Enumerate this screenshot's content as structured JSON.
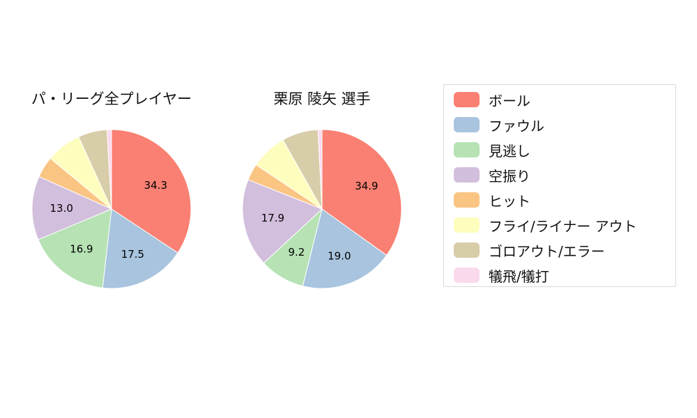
{
  "chart_data": [
    {
      "type": "pie",
      "title": "パ・リーグ全プレイヤー",
      "labels": [
        "ボール",
        "ファウル",
        "見逃し",
        "空振り",
        "ヒット",
        "フライ/ライナー アウト",
        "ゴロアウト/エラー",
        "犠飛/犠打"
      ],
      "slice_names": [
        "ball",
        "foul",
        "called-strike",
        "swinging-strike",
        "hit",
        "fly-liner-out",
        "groundout-error",
        "sacrifice"
      ],
      "values": [
        34.3,
        17.5,
        16.9,
        13.0,
        4.3,
        7.2,
        5.9,
        0.9
      ],
      "data_labels": [
        "34.3",
        "17.5",
        "16.9",
        "13.0",
        "",
        "",
        "",
        ""
      ],
      "colors": [
        "#f98072",
        "#a8c4de",
        "#b6e2b4",
        "#d2bedd",
        "#fac483",
        "#fdfdbe",
        "#d8cda9",
        "#fbd9ed"
      ],
      "start_angle_deg": 0,
      "direction": "clockwise"
    },
    {
      "type": "pie",
      "title": "栗原 陵矢  選手",
      "labels": [
        "ボール",
        "ファウル",
        "見逃し",
        "空振り",
        "ヒット",
        "フライ/ライナー アウト",
        "ゴロアウト/エラー",
        "犠飛/犠打"
      ],
      "slice_names": [
        "ball",
        "foul",
        "called-strike",
        "swinging-strike",
        "hit",
        "fly-liner-out",
        "groundout-error",
        "sacrifice"
      ],
      "values": [
        34.9,
        19.0,
        9.2,
        17.9,
        3.4,
        7.4,
        7.4,
        0.8
      ],
      "data_labels": [
        "34.9",
        "19.0",
        "9.2",
        "17.9",
        "",
        "",
        "",
        ""
      ],
      "colors": [
        "#f98072",
        "#a8c4de",
        "#b6e2b4",
        "#d2bedd",
        "#fac483",
        "#fdfdbe",
        "#d8cda9",
        "#fbd9ed"
      ],
      "start_angle_deg": 0,
      "direction": "clockwise"
    }
  ],
  "legend": {
    "position": "right",
    "items": [
      {
        "label": "ボール",
        "color": "#f98072"
      },
      {
        "label": "ファウル",
        "color": "#a8c4de"
      },
      {
        "label": "見逃し",
        "color": "#b6e2b4"
      },
      {
        "label": "空振り",
        "color": "#d2bedd"
      },
      {
        "label": "ヒット",
        "color": "#fac483"
      },
      {
        "label": "フライ/ライナー アウト",
        "color": "#fdfdbe"
      },
      {
        "label": "ゴロアウト/エラー",
        "color": "#d8cda9"
      },
      {
        "label": "犠飛/犠打",
        "color": "#fbd9ed"
      }
    ]
  },
  "style": {
    "background": "#ffffff",
    "label_color": "#000000"
  }
}
